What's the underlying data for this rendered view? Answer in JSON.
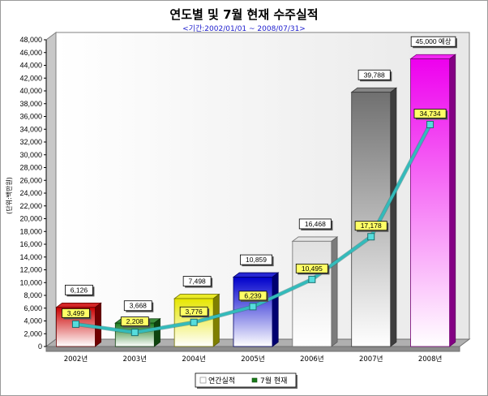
{
  "chart_data": {
    "type": "bar",
    "title": "연도별 및 7월 현재 수주실적",
    "subtitle": "<기간:2002/01/01 ~ 2008/07/31>",
    "ylabel": "(단위:백만원)",
    "xlabel": "",
    "categories": [
      "2002년",
      "2003년",
      "2004년",
      "2005년",
      "2006년",
      "2007년",
      "2008년"
    ],
    "ylim": [
      0,
      48000
    ],
    "yticks": [
      "0",
      "2,000",
      "4,000",
      "6,000",
      "8,000",
      "10,000",
      "12,000",
      "14,000",
      "16,000",
      "18,000",
      "20,000",
      "22,000",
      "24,000",
      "26,000",
      "28,000",
      "30,000",
      "32,000",
      "34,000",
      "36,000",
      "38,000",
      "40,000",
      "42,000",
      "44,000",
      "46,000",
      "48,000"
    ],
    "series": [
      {
        "name": "연간실적",
        "type": "bar",
        "values": [
          6126,
          3668,
          7498,
          10859,
          16468,
          39788,
          45000
        ],
        "labels": [
          "6,126",
          "3,668",
          "7,498",
          "10,859",
          "16,468",
          "39,788",
          "45,000 예상"
        ],
        "colors": [
          "#cc0000",
          "#1a7a1a",
          "#e6e600",
          "#0000cc",
          "#e0e0e0",
          "#707070",
          "#ee00ee"
        ]
      },
      {
        "name": "7월 현재",
        "type": "line",
        "color": "#33bbbb",
        "values": [
          3499,
          2208,
          3776,
          6239,
          10495,
          17178,
          34734
        ],
        "labels": [
          "3,499",
          "2,208",
          "3,776",
          "6,239",
          "10,495",
          "17,178",
          "34,734"
        ]
      }
    ],
    "grid": false,
    "legend": "bottom-center"
  }
}
